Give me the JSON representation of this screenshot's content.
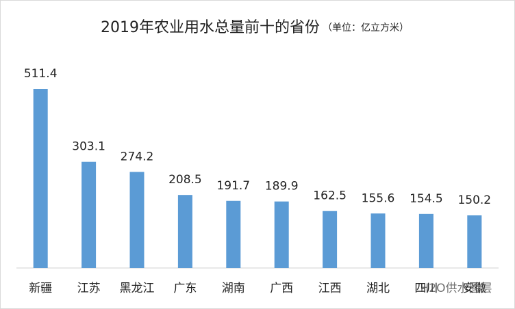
{
  "chart_data": {
    "type": "bar",
    "title": "2019年农业用水总量前十的省份",
    "subtitle": "（单位：亿立方米）",
    "categories": [
      "新疆",
      "江苏",
      "黑龙江",
      "广东",
      "湖南",
      "广西",
      "江西",
      "湖北",
      "四川",
      "安徽"
    ],
    "values": [
      511.4,
      303.1,
      274.2,
      208.5,
      191.7,
      189.9,
      162.5,
      155.6,
      154.5,
      150.2
    ],
    "color": "#5b9bd5",
    "watermark": "H2O供水圈层"
  }
}
